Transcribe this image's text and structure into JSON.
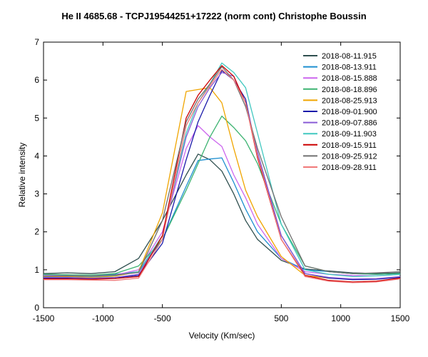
{
  "chart_data": {
    "type": "line",
    "title": "He II 4685.68 - TCPJ19544251+17222 (norm cont)   Christophe Boussin",
    "xlabel": "Velocity (Km/sec)",
    "ylabel": "Relative intensity",
    "xlim": [
      -1500,
      1500
    ],
    "ylim": [
      0,
      7
    ],
    "xticks": [
      -1500,
      -1000,
      -500,
      500,
      1000,
      1500
    ],
    "yticks": [
      0,
      1,
      2,
      3,
      4,
      5,
      6,
      7
    ],
    "legend": "top-right",
    "series": [
      {
        "name": "2018-08-11.915",
        "color": "#2f4f4f",
        "x": [
          -1500,
          -1300,
          -1100,
          -900,
          -700,
          -500,
          -300,
          -200,
          -100,
          0,
          100,
          200,
          300,
          500,
          700,
          900,
          1100,
          1300,
          1500
        ],
        "y": [
          0.9,
          0.92,
          0.9,
          0.95,
          1.3,
          2.3,
          3.5,
          4.05,
          3.9,
          3.6,
          3.0,
          2.3,
          1.8,
          1.25,
          1.02,
          0.97,
          0.92,
          0.9,
          0.92
        ]
      },
      {
        "name": "2018-08-13.911",
        "color": "#1e8fd0",
        "x": [
          -1500,
          -1300,
          -1100,
          -900,
          -700,
          -500,
          -300,
          -200,
          -100,
          0,
          100,
          200,
          300,
          500,
          700,
          900,
          1100,
          1300,
          1500
        ],
        "y": [
          0.85,
          0.86,
          0.85,
          0.88,
          0.95,
          1.8,
          3.2,
          3.88,
          3.92,
          3.95,
          3.3,
          2.6,
          2.0,
          1.3,
          1.0,
          0.95,
          0.9,
          0.88,
          0.9
        ]
      },
      {
        "name": "2018-08-15.888",
        "color": "#cc66ee",
        "x": [
          -1500,
          -1300,
          -1100,
          -900,
          -700,
          -500,
          -300,
          -200,
          -100,
          0,
          100,
          200,
          300,
          500,
          700,
          900,
          1100,
          1300,
          1500
        ],
        "y": [
          0.86,
          0.85,
          0.84,
          0.86,
          1.0,
          2.0,
          4.2,
          4.8,
          4.5,
          4.25,
          3.5,
          2.9,
          2.2,
          1.3,
          0.95,
          0.88,
          0.85,
          0.84,
          0.88
        ]
      },
      {
        "name": "2018-08-18.896",
        "color": "#3cb371",
        "x": [
          -1500,
          -1300,
          -1100,
          -900,
          -700,
          -500,
          -300,
          -200,
          -100,
          0,
          100,
          200,
          300,
          500,
          700,
          900,
          1100,
          1300,
          1500
        ],
        "y": [
          0.88,
          0.87,
          0.86,
          0.9,
          1.1,
          1.8,
          3.1,
          3.8,
          4.5,
          5.05,
          4.75,
          4.4,
          3.8,
          2.2,
          1.1,
          0.95,
          0.9,
          0.88,
          0.9
        ]
      },
      {
        "name": "2018-08-25.913",
        "color": "#f0a500",
        "x": [
          -1500,
          -1300,
          -1100,
          -900,
          -700,
          -500,
          -300,
          -200,
          -100,
          0,
          100,
          200,
          300,
          500,
          700,
          900,
          1100,
          1300,
          1500
        ],
        "y": [
          0.82,
          0.82,
          0.8,
          0.83,
          0.95,
          2.5,
          5.7,
          5.75,
          5.8,
          5.4,
          4.2,
          3.1,
          2.4,
          1.35,
          0.85,
          0.78,
          0.75,
          0.76,
          0.8
        ]
      },
      {
        "name": "2018-09-01.900",
        "color": "#1a1aaa",
        "x": [
          -1500,
          -1300,
          -1100,
          -900,
          -700,
          -500,
          -300,
          -200,
          -100,
          0,
          100,
          200,
          300,
          500,
          700,
          900,
          1100,
          1300,
          1500
        ],
        "y": [
          0.78,
          0.78,
          0.77,
          0.79,
          0.85,
          1.7,
          3.9,
          4.9,
          5.6,
          6.25,
          6.0,
          5.5,
          4.0,
          1.9,
          0.9,
          0.78,
          0.74,
          0.75,
          0.8
        ]
      },
      {
        "name": "2018-09-07.886",
        "color": "#8a5cd6",
        "x": [
          -1500,
          -1300,
          -1100,
          -900,
          -700,
          -500,
          -300,
          -200,
          -100,
          0,
          100,
          200,
          300,
          500,
          700,
          900,
          1100,
          1300,
          1500
        ],
        "y": [
          0.8,
          0.8,
          0.78,
          0.8,
          0.88,
          1.9,
          4.5,
          5.3,
          5.8,
          6.2,
          6.1,
          5.4,
          4.1,
          1.9,
          0.9,
          0.8,
          0.76,
          0.77,
          0.82
        ]
      },
      {
        "name": "2018-09-11.903",
        "color": "#40c8c0",
        "x": [
          -1500,
          -1300,
          -1100,
          -900,
          -700,
          -500,
          -300,
          -200,
          -100,
          0,
          100,
          200,
          300,
          500,
          700,
          900,
          1100,
          1300,
          1500
        ],
        "y": [
          0.84,
          0.84,
          0.82,
          0.85,
          0.95,
          1.9,
          4.6,
          5.4,
          5.9,
          6.45,
          6.2,
          5.8,
          4.6,
          2.2,
          1.0,
          0.88,
          0.82,
          0.84,
          0.88
        ]
      },
      {
        "name": "2018-09-15.911",
        "color": "#cc0000",
        "x": [
          -1500,
          -1300,
          -1100,
          -900,
          -700,
          -500,
          -300,
          -200,
          -100,
          0,
          100,
          200,
          300,
          500,
          700,
          900,
          1100,
          1300,
          1500
        ],
        "y": [
          0.76,
          0.76,
          0.75,
          0.77,
          0.82,
          1.9,
          5.0,
          5.6,
          6.0,
          6.38,
          6.1,
          5.4,
          3.95,
          1.8,
          0.85,
          0.72,
          0.68,
          0.7,
          0.78
        ]
      },
      {
        "name": "2018-09-25.912",
        "color": "#707070",
        "x": [
          -1500,
          -1300,
          -1100,
          -900,
          -700,
          -500,
          -300,
          -200,
          -100,
          0,
          100,
          200,
          300,
          500,
          700,
          900,
          1100,
          1300,
          1500
        ],
        "y": [
          0.83,
          0.84,
          0.83,
          0.86,
          0.93,
          2.3,
          4.9,
          5.5,
          5.9,
          6.35,
          6.0,
          5.3,
          4.2,
          2.4,
          1.1,
          0.95,
          0.9,
          0.92,
          0.95
        ]
      },
      {
        "name": "2018-09-28.911",
        "color": "#f07878",
        "x": [
          -1500,
          -1300,
          -1100,
          -900,
          -700,
          -500,
          -300,
          -200,
          -100,
          0,
          100,
          200,
          300,
          500,
          700,
          900,
          1100,
          1300,
          1500
        ],
        "y": [
          0.74,
          0.74,
          0.73,
          0.72,
          0.78,
          1.8,
          4.8,
          5.4,
          5.85,
          6.28,
          6.0,
          5.4,
          4.0,
          1.8,
          0.82,
          0.7,
          0.66,
          0.68,
          0.76
        ]
      }
    ]
  }
}
